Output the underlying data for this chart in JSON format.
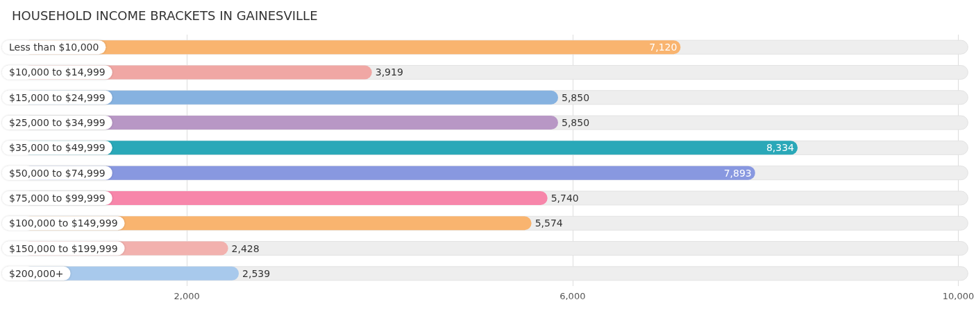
{
  "chart_data": {
    "type": "bar",
    "orientation": "horizontal",
    "title": "HOUSEHOLD INCOME BRACKETS IN GAINESVILLE",
    "categories": [
      "Less than $10,000",
      "$10,000 to $14,999",
      "$15,000 to $24,999",
      "$25,000 to $34,999",
      "$35,000 to $49,999",
      "$50,000 to $74,999",
      "$75,000 to $99,999",
      "$100,000 to $149,999",
      "$150,000 to $199,999",
      "$200,000+"
    ],
    "values": [
      7120,
      3919,
      5850,
      5850,
      8334,
      7893,
      5740,
      5574,
      2428,
      2539
    ],
    "colors": [
      "#f9b46f",
      "#f0a7a4",
      "#86b2e0",
      "#b897c5",
      "#2aa8b8",
      "#8898e0",
      "#f786aa",
      "#f9b46f",
      "#f2b1ae",
      "#a8c9ec"
    ],
    "xlim": [
      300,
      10100
    ],
    "xticks": [
      {
        "value": 2000,
        "label": "2,000"
      },
      {
        "value": 6000,
        "label": "6,000"
      },
      {
        "value": 10000,
        "label": "10,000"
      }
    ],
    "value_labels": [
      "7,120",
      "3,919",
      "5,850",
      "5,850",
      "8,334",
      "7,893",
      "5,740",
      "5,574",
      "2,428",
      "2,539"
    ],
    "grid": "x"
  }
}
